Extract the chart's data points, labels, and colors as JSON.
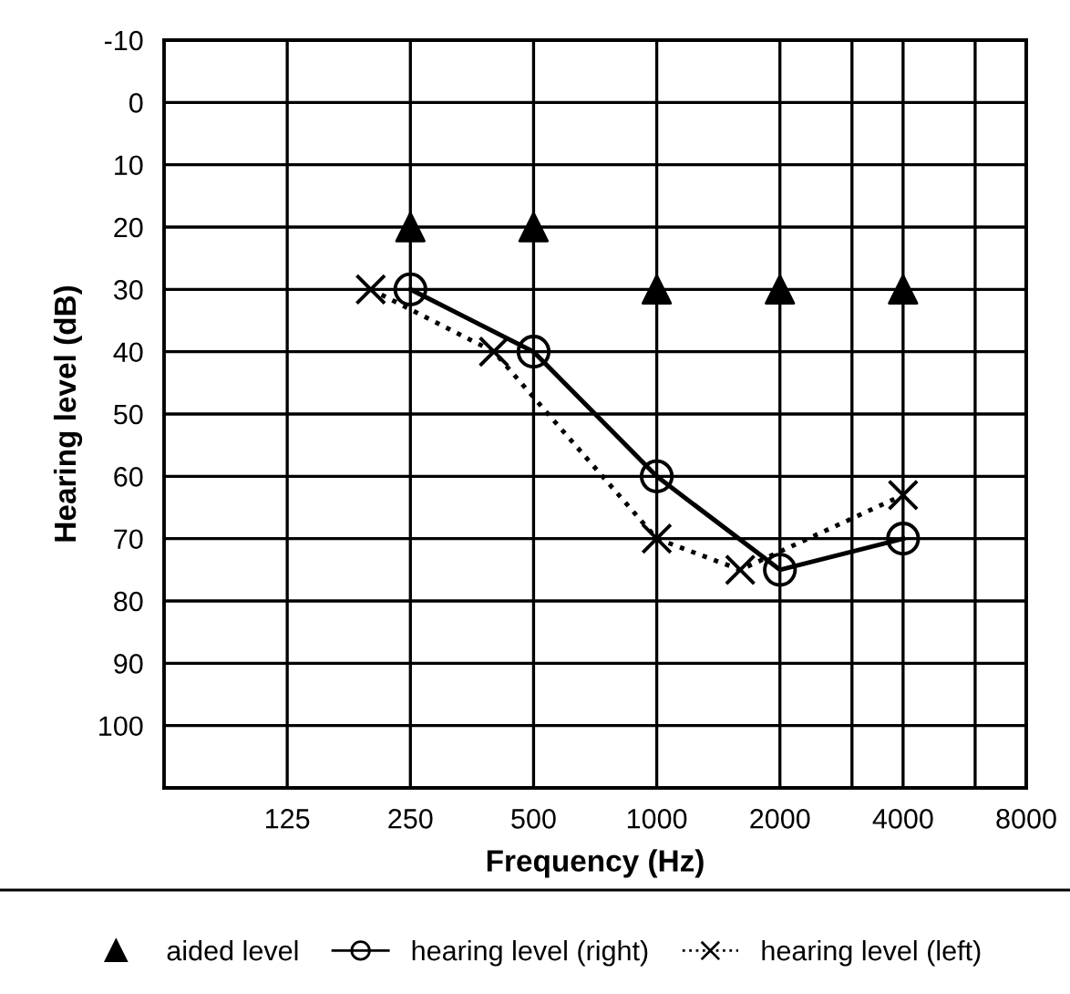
{
  "chart_data": {
    "type": "line",
    "xlabel": "Frequency (Hz)",
    "ylabel": "Hearing level (dB)",
    "log": "x",
    "xlim": [
      62.5,
      8000
    ],
    "ylim": [
      110,
      -10
    ],
    "xticks": [
      125,
      250,
      500,
      1000,
      2000,
      {
        "value": 3000,
        "label": null
      },
      4000,
      {
        "value": 6000,
        "label": null
      },
      8000
    ],
    "yticks": [
      -10,
      0,
      10,
      20,
      30,
      40,
      50,
      60,
      70,
      80,
      90,
      100
    ],
    "grid": true,
    "legend": "bottom",
    "series": [
      {
        "name": "aided level",
        "type": "scatter",
        "marker": "triangle",
        "color": "#000000",
        "x": [
          250,
          500,
          1000,
          2000,
          4000
        ],
        "values": [
          20,
          20,
          30,
          30,
          30
        ]
      },
      {
        "name": "hearing level (right)",
        "marker": "circle",
        "line_style": "solid",
        "color": "#000000",
        "x": [
          250,
          500,
          1000,
          2000,
          4000
        ],
        "values": [
          30,
          40,
          60,
          75,
          70
        ]
      },
      {
        "name": "hearing level (left)",
        "marker": "cross",
        "line_style": "dotted",
        "color": "#000000",
        "x": [
          200,
          400,
          1000,
          1600,
          4000
        ],
        "values": [
          30,
          40,
          70,
          75,
          63
        ]
      }
    ]
  }
}
